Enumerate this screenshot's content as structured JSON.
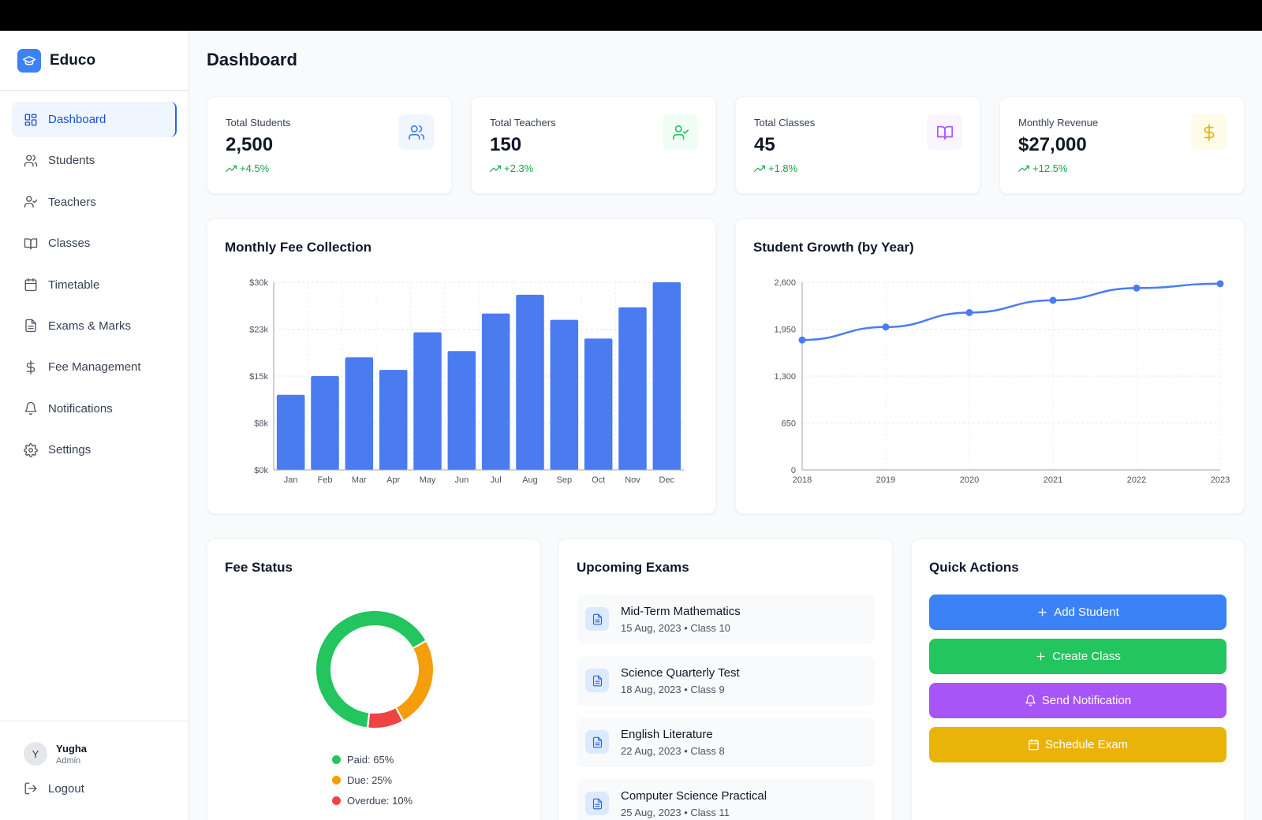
{
  "app": {
    "name": "Educo"
  },
  "sidebar": {
    "items": [
      {
        "label": "Dashboard",
        "icon": "grid-icon"
      },
      {
        "label": "Students",
        "icon": "users-icon"
      },
      {
        "label": "Teachers",
        "icon": "user-check-icon"
      },
      {
        "label": "Classes",
        "icon": "book-icon"
      },
      {
        "label": "Timetable",
        "icon": "calendar-icon"
      },
      {
        "label": "Exams & Marks",
        "icon": "file-icon"
      },
      {
        "label": "Fee Management",
        "icon": "dollar-icon"
      },
      {
        "label": "Notifications",
        "icon": "bell-icon"
      },
      {
        "label": "Settings",
        "icon": "gear-icon"
      }
    ],
    "active": "Dashboard",
    "user": {
      "initial": "Y",
      "name": "Yugha",
      "role": "Admin"
    },
    "logout": "Logout"
  },
  "page": {
    "title": "Dashboard"
  },
  "stats": [
    {
      "label": "Total Students",
      "value": "2,500",
      "change": "+4.5%",
      "icon": "users-icon",
      "color": "#3b82f6",
      "bg": "#eff6ff"
    },
    {
      "label": "Total Teachers",
      "value": "150",
      "change": "+2.3%",
      "icon": "user-check-icon",
      "color": "#22c55e",
      "bg": "#f0fdf4"
    },
    {
      "label": "Total Classes",
      "value": "45",
      "change": "+1.8%",
      "icon": "book-icon",
      "color": "#a855f7",
      "bg": "#faf5ff"
    },
    {
      "label": "Monthly Revenue",
      "value": "$27,000",
      "change": "+12.5%",
      "icon": "dollar-icon",
      "color": "#eab308",
      "bg": "#fefce8"
    }
  ],
  "fee_chart_title": "Monthly Fee Collection",
  "growth_chart_title": "Student Growth (by Year)",
  "chart_data": [
    {
      "type": "bar",
      "title": "Monthly Fee Collection",
      "categories": [
        "Jan",
        "Feb",
        "Mar",
        "Apr",
        "May",
        "Jun",
        "Jul",
        "Aug",
        "Sep",
        "Oct",
        "Nov",
        "Dec"
      ],
      "values": [
        12000,
        15000,
        18000,
        16000,
        22000,
        19000,
        25000,
        28000,
        24000,
        21000,
        26000,
        30000
      ],
      "yticks": [
        "$0k",
        "$8k",
        "$15k",
        "$23k",
        "$30k"
      ],
      "ylim": [
        0,
        30000
      ],
      "xlabel": "",
      "ylabel": "",
      "grid": true,
      "color": "#4a7cf0"
    },
    {
      "type": "line",
      "title": "Student Growth (by Year)",
      "x": [
        "2018",
        "2019",
        "2020",
        "2021",
        "2022",
        "2023"
      ],
      "values": [
        1800,
        1980,
        2180,
        2350,
        2520,
        2580
      ],
      "yticks": [
        "0",
        "650",
        "1,300",
        "1,950",
        "2,600"
      ],
      "ylim": [
        0,
        2600
      ],
      "xlabel": "",
      "ylabel": "",
      "grid": true,
      "color": "#4a7cf0"
    },
    {
      "type": "pie",
      "title": "Fee Status",
      "donut": true,
      "slices": [
        {
          "label": "Paid: 65%",
          "value": 65,
          "color": "#22c55e"
        },
        {
          "label": "Due: 25%",
          "value": 25,
          "color": "#f59e0b"
        },
        {
          "label": "Overdue: 10%",
          "value": 10,
          "color": "#ef4444"
        }
      ]
    }
  ],
  "fee_status": {
    "title": "Fee Status"
  },
  "exams": {
    "title": "Upcoming Exams",
    "items": [
      {
        "name": "Mid-Term Mathematics",
        "meta": "15 Aug, 2023 • Class 10"
      },
      {
        "name": "Science Quarterly Test",
        "meta": "18 Aug, 2023 • Class 9"
      },
      {
        "name": "English Literature",
        "meta": "22 Aug, 2023 • Class 8"
      },
      {
        "name": "Computer Science Practical",
        "meta": "25 Aug, 2023 • Class 11"
      }
    ]
  },
  "quick_actions": {
    "title": "Quick Actions",
    "buttons": [
      {
        "label": "Add Student",
        "icon": "plus-icon",
        "color": "#3b82f6"
      },
      {
        "label": "Create Class",
        "icon": "plus-icon",
        "color": "#22c55e"
      },
      {
        "label": "Send Notification",
        "icon": "bell-icon",
        "color": "#a855f7"
      },
      {
        "label": "Schedule Exam",
        "icon": "calendar-icon",
        "color": "#eab308"
      }
    ]
  }
}
